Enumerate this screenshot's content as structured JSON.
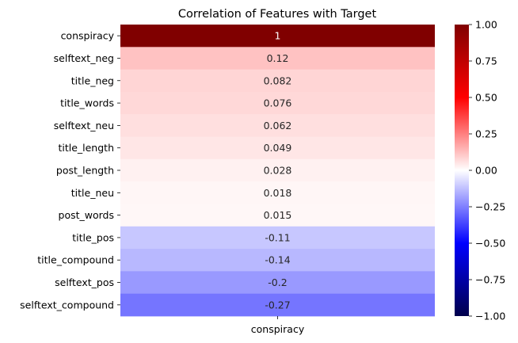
{
  "chart_data": {
    "type": "heatmap",
    "title": "Correlation of Features with Target",
    "columns": [
      "conspiracy"
    ],
    "rows": [
      {
        "label": "conspiracy",
        "value": 1,
        "text": "1"
      },
      {
        "label": "selftext_neg",
        "value": 0.12,
        "text": "0.12"
      },
      {
        "label": "title_neg",
        "value": 0.082,
        "text": "0.082"
      },
      {
        "label": "title_words",
        "value": 0.076,
        "text": "0.076"
      },
      {
        "label": "selftext_neu",
        "value": 0.062,
        "text": "0.062"
      },
      {
        "label": "title_length",
        "value": 0.049,
        "text": "0.049"
      },
      {
        "label": "post_length",
        "value": 0.028,
        "text": "0.028"
      },
      {
        "label": "title_neu",
        "value": 0.018,
        "text": "0.018"
      },
      {
        "label": "post_words",
        "value": 0.015,
        "text": "0.015"
      },
      {
        "label": "title_pos",
        "value": -0.11,
        "text": "-0.11"
      },
      {
        "label": "title_compound",
        "value": -0.14,
        "text": "-0.14"
      },
      {
        "label": "selftext_pos",
        "value": -0.2,
        "text": "-0.2"
      },
      {
        "label": "selftext_compound",
        "value": -0.27,
        "text": "-0.27"
      }
    ],
    "colormap": "seismic",
    "colorbar": {
      "range": [
        -1,
        1
      ],
      "ticks": [
        {
          "value": 1,
          "label": "1.00"
        },
        {
          "value": 0.75,
          "label": "0.75"
        },
        {
          "value": 0.5,
          "label": "0.50"
        },
        {
          "value": 0.25,
          "label": "0.25"
        },
        {
          "value": 0,
          "label": "0.00"
        },
        {
          "value": -0.25,
          "label": "−0.25"
        },
        {
          "value": -0.5,
          "label": "−0.50"
        },
        {
          "value": -0.75,
          "label": "−0.75"
        },
        {
          "value": -1,
          "label": "−1.00"
        }
      ]
    },
    "annotated": true
  }
}
